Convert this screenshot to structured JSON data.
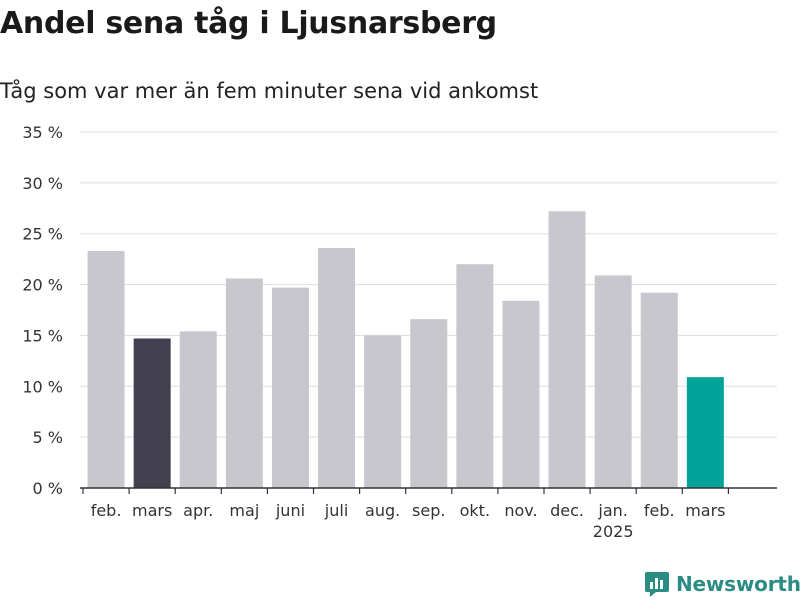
{
  "title": "Andel sena tåg i Ljusnarsberg",
  "subtitle": "Tåg som var mer än fem minuter sena vid ankomst",
  "brand": {
    "name": "Newsworthy",
    "color": "#2a8c82"
  },
  "colors": {
    "default_bar": "#c8c7cd",
    "highlight_dark": "#434150",
    "highlight_current": "#00a398",
    "grid": "#dddddd",
    "axis": "#333333"
  },
  "chart_data": {
    "type": "bar",
    "ylim": [
      0,
      35
    ],
    "y_ticks": [
      0,
      5,
      10,
      15,
      20,
      25,
      30,
      35
    ],
    "y_tick_labels": [
      "0 %",
      "5 %",
      "10 %",
      "15 %",
      "20 %",
      "25 %",
      "30 %",
      "35 %"
    ],
    "grid": true,
    "categories": [
      "feb.",
      "mars",
      "apr.",
      "maj",
      "juni",
      "juli",
      "aug.",
      "sep.",
      "okt.",
      "nov.",
      "dec.",
      "jan.",
      "feb.",
      "mars"
    ],
    "year_labels": [
      {
        "category_index": 11,
        "label": "2025"
      }
    ],
    "values": [
      23.3,
      14.7,
      15.4,
      20.6,
      19.7,
      23.6,
      15.0,
      16.6,
      22.0,
      18.4,
      27.2,
      20.9,
      19.2,
      10.9
    ],
    "bar_colors": [
      "#c8c7cd",
      "#434150",
      "#c8c7cd",
      "#c8c7cd",
      "#c8c7cd",
      "#c8c7cd",
      "#c8c7cd",
      "#c8c7cd",
      "#c8c7cd",
      "#c8c7cd",
      "#c8c7cd",
      "#c8c7cd",
      "#c8c7cd",
      "#00a398"
    ]
  }
}
